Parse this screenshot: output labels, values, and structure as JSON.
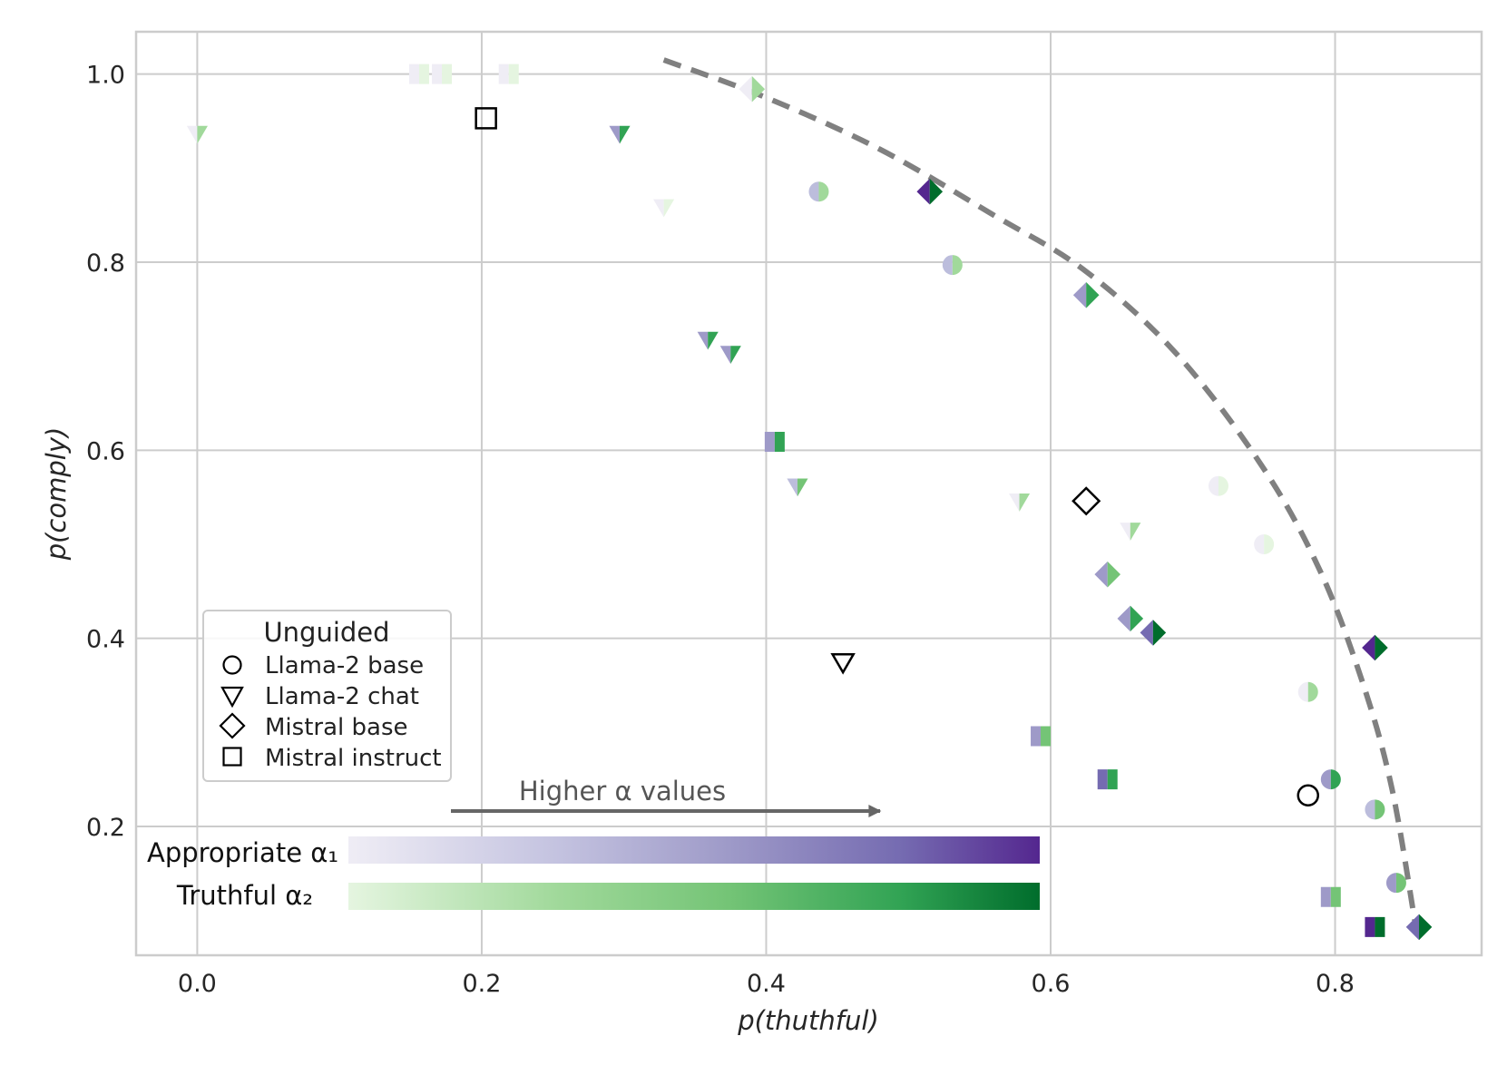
{
  "chart_data": {
    "type": "scatter",
    "xlabel": "p(thuthful)",
    "ylabel": "p(comply)",
    "xlim": [
      -0.043,
      0.903
    ],
    "ylim": [
      0.063,
      1.045
    ],
    "xticks": [
      0.0,
      0.2,
      0.4,
      0.6,
      0.8
    ],
    "yticks": [
      0.2,
      0.4,
      0.6,
      0.8,
      1.0
    ],
    "grid": true,
    "legend": {
      "title": "Unguided",
      "placement": "lower-left",
      "entries": [
        {
          "label": "Llama-2 base",
          "marker": "circle"
        },
        {
          "label": "Llama-2 chat",
          "marker": "triangle-down"
        },
        {
          "label": "Mistral base",
          "marker": "diamond"
        },
        {
          "label": "Mistral instruct",
          "marker": "square"
        }
      ]
    },
    "annotation": {
      "text": "Higher α values",
      "direction": "right"
    },
    "colorbars": [
      {
        "label": "Appropriate α₁",
        "colors": [
          "#efedf5",
          "#bcbddc",
          "#9e9ac8",
          "#756bb1",
          "#54278f"
        ]
      },
      {
        "label": "Truthful α₂",
        "colors": [
          "#e5f5e0",
          "#a1d99b",
          "#74c476",
          "#31a354",
          "#006d2c"
        ]
      }
    ],
    "frontier": [
      {
        "x": 0.328,
        "y": 1.015
      },
      {
        "x": 0.4,
        "y": 0.975
      },
      {
        "x": 0.48,
        "y": 0.92
      },
      {
        "x": 0.56,
        "y": 0.85
      },
      {
        "x": 0.625,
        "y": 0.79
      },
      {
        "x": 0.69,
        "y": 0.7
      },
      {
        "x": 0.75,
        "y": 0.58
      },
      {
        "x": 0.79,
        "y": 0.47
      },
      {
        "x": 0.82,
        "y": 0.35
      },
      {
        "x": 0.84,
        "y": 0.24
      },
      {
        "x": 0.856,
        "y": 0.1
      }
    ],
    "unguided": [
      {
        "model": "Llama-2 base",
        "marker": "circle",
        "x": 0.781,
        "y": 0.233
      },
      {
        "model": "Llama-2 chat",
        "marker": "triangle-down",
        "x": 0.454,
        "y": 0.375
      },
      {
        "model": "Mistral base",
        "marker": "diamond",
        "x": 0.625,
        "y": 0.546
      },
      {
        "model": "Mistral instruct",
        "marker": "square",
        "x": 0.203,
        "y": 0.953
      }
    ],
    "guided_points": [
      {
        "model": "Llama-2 base",
        "marker": "circle",
        "x": 0.437,
        "y": 0.875,
        "alpha1": 1,
        "alpha2": 1
      },
      {
        "model": "Llama-2 base",
        "marker": "circle",
        "x": 0.531,
        "y": 0.797,
        "alpha1": 1,
        "alpha2": 1
      },
      {
        "model": "Llama-2 base",
        "marker": "circle",
        "x": 0.718,
        "y": 0.562,
        "alpha1": 0,
        "alpha2": 0
      },
      {
        "model": "Llama-2 base",
        "marker": "circle",
        "x": 0.75,
        "y": 0.5,
        "alpha1": 0,
        "alpha2": 0
      },
      {
        "model": "Llama-2 base",
        "marker": "circle",
        "x": 0.781,
        "y": 0.343,
        "alpha1": 0,
        "alpha2": 1
      },
      {
        "model": "Llama-2 base",
        "marker": "circle",
        "x": 0.797,
        "y": 0.25,
        "alpha1": 2,
        "alpha2": 3
      },
      {
        "model": "Llama-2 base",
        "marker": "circle",
        "x": 0.828,
        "y": 0.218,
        "alpha1": 1,
        "alpha2": 2
      },
      {
        "model": "Llama-2 base",
        "marker": "circle",
        "x": 0.843,
        "y": 0.14,
        "alpha1": 2,
        "alpha2": 2
      },
      {
        "model": "Llama-2 chat",
        "marker": "triangle-down",
        "x": 0.0,
        "y": 0.937,
        "alpha1": 0,
        "alpha2": 1
      },
      {
        "model": "Llama-2 chat",
        "marker": "triangle-down",
        "x": 0.297,
        "y": 0.937,
        "alpha1": 2,
        "alpha2": 3
      },
      {
        "model": "Llama-2 chat",
        "marker": "triangle-down",
        "x": 0.328,
        "y": 0.859,
        "alpha1": 0,
        "alpha2": 0
      },
      {
        "model": "Llama-2 chat",
        "marker": "triangle-down",
        "x": 0.359,
        "y": 0.718,
        "alpha1": 2,
        "alpha2": 3
      },
      {
        "model": "Llama-2 chat",
        "marker": "triangle-down",
        "x": 0.375,
        "y": 0.703,
        "alpha1": 2,
        "alpha2": 3
      },
      {
        "model": "Llama-2 chat",
        "marker": "triangle-down",
        "x": 0.422,
        "y": 0.562,
        "alpha1": 1,
        "alpha2": 2
      },
      {
        "model": "Llama-2 chat",
        "marker": "triangle-down",
        "x": 0.578,
        "y": 0.546,
        "alpha1": 0,
        "alpha2": 1
      },
      {
        "model": "Llama-2 chat",
        "marker": "triangle-down",
        "x": 0.656,
        "y": 0.515,
        "alpha1": 0,
        "alpha2": 1
      },
      {
        "model": "Mistral base",
        "marker": "diamond",
        "x": 0.39,
        "y": 0.984,
        "alpha1": 0,
        "alpha2": 1
      },
      {
        "model": "Mistral base",
        "marker": "diamond",
        "x": 0.515,
        "y": 0.875,
        "alpha1": 4,
        "alpha2": 4
      },
      {
        "model": "Mistral base",
        "marker": "diamond",
        "x": 0.625,
        "y": 0.765,
        "alpha1": 2,
        "alpha2": 3
      },
      {
        "model": "Mistral base",
        "marker": "diamond",
        "x": 0.64,
        "y": 0.468,
        "alpha1": 2,
        "alpha2": 2
      },
      {
        "model": "Mistral base",
        "marker": "diamond",
        "x": 0.656,
        "y": 0.421,
        "alpha1": 2,
        "alpha2": 3
      },
      {
        "model": "Mistral base",
        "marker": "diamond",
        "x": 0.672,
        "y": 0.406,
        "alpha1": 3,
        "alpha2": 4
      },
      {
        "model": "Mistral base",
        "marker": "diamond",
        "x": 0.828,
        "y": 0.39,
        "alpha1": 4,
        "alpha2": 4
      },
      {
        "model": "Mistral base",
        "marker": "diamond",
        "x": 0.859,
        "y": 0.093,
        "alpha1": 3,
        "alpha2": 4
      },
      {
        "model": "Mistral instruct",
        "marker": "square",
        "x": 0.156,
        "y": 1.0,
        "alpha1": 0,
        "alpha2": 0
      },
      {
        "model": "Mistral instruct",
        "marker": "square",
        "x": 0.172,
        "y": 1.0,
        "alpha1": 0,
        "alpha2": 0
      },
      {
        "model": "Mistral instruct",
        "marker": "square",
        "x": 0.219,
        "y": 1.0,
        "alpha1": 0,
        "alpha2": 0
      },
      {
        "model": "Mistral instruct",
        "marker": "square",
        "x": 0.406,
        "y": 0.609,
        "alpha1": 2,
        "alpha2": 3
      },
      {
        "model": "Mistral instruct",
        "marker": "square",
        "x": 0.593,
        "y": 0.296,
        "alpha1": 2,
        "alpha2": 2
      },
      {
        "model": "Mistral instruct",
        "marker": "square",
        "x": 0.64,
        "y": 0.25,
        "alpha1": 3,
        "alpha2": 3
      },
      {
        "model": "Mistral instruct",
        "marker": "square",
        "x": 0.797,
        "y": 0.125,
        "alpha1": 2,
        "alpha2": 2
      },
      {
        "model": "Mistral instruct",
        "marker": "square",
        "x": 0.828,
        "y": 0.093,
        "alpha1": 4,
        "alpha2": 4
      }
    ]
  }
}
